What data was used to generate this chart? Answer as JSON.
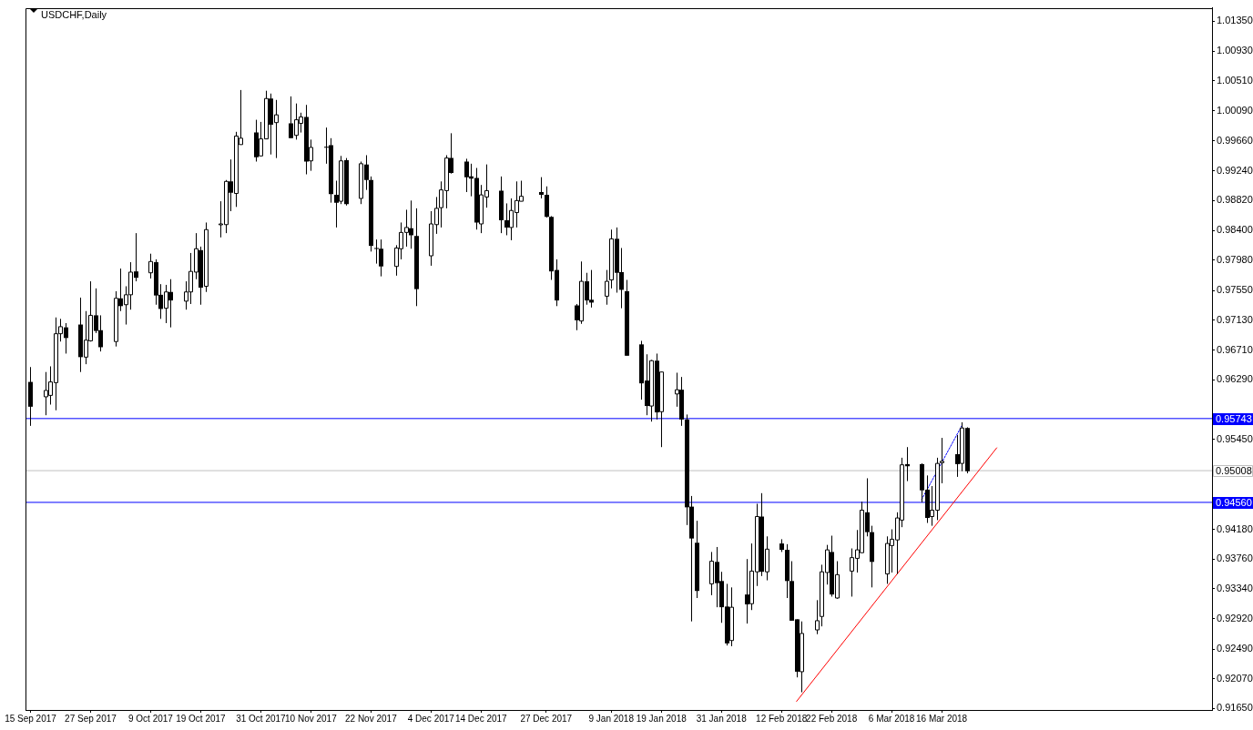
{
  "chart_data": {
    "type": "candlestick",
    "title": "USDCHF,Daily",
    "x": [
      "2017-09-15",
      "2017-09-18",
      "2017-09-19",
      "2017-09-20",
      "2017-09-21",
      "2017-09-22",
      "2017-09-25",
      "2017-09-26",
      "2017-09-27",
      "2017-09-28",
      "2017-09-29",
      "2017-10-02",
      "2017-10-03",
      "2017-10-04",
      "2017-10-05",
      "2017-10-06",
      "2017-10-09",
      "2017-10-10",
      "2017-10-11",
      "2017-10-12",
      "2017-10-13",
      "2017-10-16",
      "2017-10-17",
      "2017-10-18",
      "2017-10-19",
      "2017-10-20",
      "2017-10-23",
      "2017-10-24",
      "2017-10-25",
      "2017-10-26",
      "2017-10-27",
      "2017-10-30",
      "2017-10-31",
      "2017-11-01",
      "2017-11-02",
      "2017-11-03",
      "2017-11-06",
      "2017-11-07",
      "2017-11-08",
      "2017-11-09",
      "2017-11-10",
      "2017-11-13",
      "2017-11-14",
      "2017-11-15",
      "2017-11-16",
      "2017-11-17",
      "2017-11-20",
      "2017-11-21",
      "2017-11-22",
      "2017-11-23",
      "2017-11-24",
      "2017-11-27",
      "2017-11-28",
      "2017-11-29",
      "2017-11-30",
      "2017-12-01",
      "2017-12-04",
      "2017-12-05",
      "2017-12-06",
      "2017-12-07",
      "2017-12-08",
      "2017-12-11",
      "2017-12-12",
      "2017-12-13",
      "2017-12-14",
      "2017-12-15",
      "2017-12-18",
      "2017-12-19",
      "2017-12-20",
      "2017-12-21",
      "2017-12-22",
      "2017-12-26",
      "2017-12-27",
      "2017-12-28",
      "2017-12-29",
      "2018-01-02",
      "2018-01-03",
      "2018-01-04",
      "2018-01-05",
      "2018-01-08",
      "2018-01-09",
      "2018-01-10",
      "2018-01-11",
      "2018-01-12",
      "2018-01-15",
      "2018-01-16",
      "2018-01-17",
      "2018-01-18",
      "2018-01-19",
      "2018-01-22",
      "2018-01-23",
      "2018-01-24",
      "2018-01-25",
      "2018-01-26",
      "2018-01-29",
      "2018-01-30",
      "2018-01-31",
      "2018-02-01",
      "2018-02-02",
      "2018-02-05",
      "2018-02-06",
      "2018-02-07",
      "2018-02-08",
      "2018-02-09",
      "2018-02-12",
      "2018-02-13",
      "2018-02-14",
      "2018-02-15",
      "2018-02-16",
      "2018-02-19",
      "2018-02-20",
      "2018-02-21",
      "2018-02-22",
      "2018-02-23",
      "2018-02-26",
      "2018-02-27",
      "2018-02-28",
      "2018-03-01",
      "2018-03-02",
      "2018-03-05",
      "2018-03-06",
      "2018-03-07",
      "2018-03-08",
      "2018-03-09",
      "2018-03-12",
      "2018-03-13",
      "2018-03-14",
      "2018-03-15",
      "2018-03-16",
      "2018-03-19",
      "2018-03-20",
      "2018-03-21"
    ],
    "ohlc": [
      [
        0.9626,
        0.9647,
        0.9564,
        0.9591
      ],
      [
        0.9605,
        0.964,
        0.9579,
        0.9614
      ],
      [
        0.9607,
        0.9648,
        0.9594,
        0.9626
      ],
      [
        0.9625,
        0.9717,
        0.9586,
        0.9694
      ],
      [
        0.9694,
        0.9715,
        0.9683,
        0.9704
      ],
      [
        0.9703,
        0.9709,
        0.9666,
        0.9688
      ],
      [
        0.9707,
        0.9745,
        0.964,
        0.9661
      ],
      [
        0.9661,
        0.9726,
        0.9651,
        0.9685
      ],
      [
        0.9684,
        0.9768,
        0.9683,
        0.972
      ],
      [
        0.972,
        0.9758,
        0.9695,
        0.9698
      ],
      [
        0.9699,
        0.972,
        0.9669,
        0.9675
      ],
      [
        0.9683,
        0.9754,
        0.9676,
        0.9744
      ],
      [
        0.9744,
        0.9786,
        0.9726,
        0.9733
      ],
      [
        0.9735,
        0.9761,
        0.9707,
        0.9749
      ],
      [
        0.9749,
        0.9795,
        0.9728,
        0.9781
      ],
      [
        0.9782,
        0.9836,
        0.9768,
        0.9773
      ],
      [
        0.978,
        0.9807,
        0.9772,
        0.9796
      ],
      [
        0.9795,
        0.9799,
        0.9735,
        0.9748
      ],
      [
        0.9749,
        0.9764,
        0.9715,
        0.9729
      ],
      [
        0.973,
        0.9763,
        0.9709,
        0.9753
      ],
      [
        0.9753,
        0.9771,
        0.9703,
        0.9741
      ],
      [
        0.974,
        0.9768,
        0.9728,
        0.9753
      ],
      [
        0.9753,
        0.9808,
        0.9736,
        0.9782
      ],
      [
        0.9781,
        0.9836,
        0.9771,
        0.9814
      ],
      [
        0.9812,
        0.9817,
        0.9735,
        0.9759
      ],
      [
        0.9761,
        0.9851,
        0.9753,
        0.9841
      ],
      [
        0.9848,
        0.9881,
        0.983,
        0.9849
      ],
      [
        0.9848,
        0.9911,
        0.9836,
        0.9909
      ],
      [
        0.9909,
        0.994,
        0.9867,
        0.9893
      ],
      [
        0.9892,
        0.9979,
        0.9873,
        0.9973
      ],
      [
        0.9961,
        1.0038,
        0.9961,
        0.997
      ],
      [
        0.9978,
        0.9996,
        0.9937,
        0.9943
      ],
      [
        0.9945,
        0.9993,
        0.9945,
        0.9969
      ],
      [
        0.9969,
        1.0037,
        0.9969,
        1.0026
      ],
      [
        1.0026,
        1.0033,
        0.9947,
        0.9989
      ],
      [
        0.9992,
        1.0024,
        0.9942,
        1.0003
      ],
      [
        0.9991,
        1.0029,
        0.997,
        0.997
      ],
      [
        0.9974,
        1.0019,
        0.9968,
        0.9996
      ],
      [
        0.9991,
        1.0006,
        0.9978,
        1.0
      ],
      [
        1.0,
        1.0017,
        0.9919,
        0.9937
      ],
      [
        0.9938,
        0.9968,
        0.9924,
        0.9957
      ],
      [
        0.9958,
        0.9985,
        0.9934,
        0.9957
      ],
      [
        0.996,
        0.997,
        0.9879,
        0.9891
      ],
      [
        0.989,
        0.991,
        0.9844,
        0.9879
      ],
      [
        0.9881,
        0.9945,
        0.9877,
        0.9938
      ],
      [
        0.9939,
        0.9942,
        0.9875,
        0.9877
      ],
      [
        0.9885,
        0.9937,
        0.9877,
        0.9934
      ],
      [
        0.9933,
        0.9946,
        0.9897,
        0.9911
      ],
      [
        0.9911,
        0.9916,
        0.981,
        0.9818
      ],
      [
        0.9815,
        0.9827,
        0.9793,
        0.9814
      ],
      [
        0.9814,
        0.9827,
        0.9775,
        0.9789
      ],
      [
        0.9789,
        0.9819,
        0.9776,
        0.9815
      ],
      [
        0.9814,
        0.9851,
        0.9799,
        0.9837
      ],
      [
        0.9837,
        0.9869,
        0.9817,
        0.9844
      ],
      [
        0.9843,
        0.9882,
        0.9814,
        0.9833
      ],
      [
        0.9832,
        0.9871,
        0.9733,
        0.9757
      ],
      [
        0.9804,
        0.9867,
        0.979,
        0.9849
      ],
      [
        0.9848,
        0.9887,
        0.9835,
        0.9871
      ],
      [
        0.9872,
        0.9909,
        0.9844,
        0.9897
      ],
      [
        0.9896,
        0.9946,
        0.9871,
        0.9942
      ],
      [
        0.9942,
        0.9977,
        0.992,
        0.9921
      ],
      [
        0.9937,
        0.9941,
        0.9894,
        0.9915
      ],
      [
        0.9916,
        0.9934,
        0.9888,
        0.9913
      ],
      [
        0.9914,
        0.9928,
        0.9841,
        0.9851
      ],
      [
        0.9849,
        0.9904,
        0.9836,
        0.989
      ],
      [
        0.9887,
        0.9933,
        0.9872,
        0.9896
      ],
      [
        0.9896,
        0.9916,
        0.9836,
        0.9854
      ],
      [
        0.9854,
        0.9878,
        0.9833,
        0.9844
      ],
      [
        0.9844,
        0.9885,
        0.9826,
        0.9868
      ],
      [
        0.9865,
        0.9909,
        0.9844,
        0.9882
      ],
      [
        0.9881,
        0.991,
        0.9881,
        0.9888
      ],
      [
        0.9894,
        0.9915,
        0.9885,
        0.989
      ],
      [
        0.989,
        0.9902,
        0.9858,
        0.9859
      ],
      [
        0.9859,
        0.986,
        0.977,
        0.9782
      ],
      [
        0.9784,
        0.9799,
        0.9733,
        0.9741
      ],
      [
        0.9734,
        0.9736,
        0.9699,
        0.9713
      ],
      [
        0.9712,
        0.9796,
        0.9708,
        0.9768
      ],
      [
        0.9768,
        0.978,
        0.9735,
        0.9741
      ],
      [
        0.9742,
        0.9784,
        0.9731,
        0.9738
      ],
      [
        0.9747,
        0.9784,
        0.9735,
        0.9768
      ],
      [
        0.977,
        0.9841,
        0.9758,
        0.9828
      ],
      [
        0.9828,
        0.9844,
        0.9752,
        0.978
      ],
      [
        0.9781,
        0.9815,
        0.973,
        0.9756
      ],
      [
        0.9754,
        0.977,
        0.9663,
        0.9663
      ],
      [
        0.9679,
        0.9684,
        0.9601,
        0.9624
      ],
      [
        0.9628,
        0.9665,
        0.9579,
        0.9592
      ],
      [
        0.9592,
        0.9657,
        0.957,
        0.9656
      ],
      [
        0.9656,
        0.9666,
        0.9573,
        0.9583
      ],
      [
        0.9584,
        0.964,
        0.9534,
        0.964
      ],
      [
        0.9609,
        0.9639,
        0.9591,
        0.9615
      ],
      [
        0.9615,
        0.9633,
        0.9564,
        0.9573
      ],
      [
        0.9573,
        0.958,
        0.9424,
        0.9449
      ],
      [
        0.945,
        0.9465,
        0.9288,
        0.9405
      ],
      [
        0.9399,
        0.943,
        0.9321,
        0.9331
      ],
      [
        0.9341,
        0.9386,
        0.9325,
        0.9373
      ],
      [
        0.9372,
        0.9393,
        0.9308,
        0.9342
      ],
      [
        0.9345,
        0.9358,
        0.9286,
        0.9308
      ],
      [
        0.9309,
        0.9341,
        0.9254,
        0.9257
      ],
      [
        0.9261,
        0.9336,
        0.9253,
        0.9308
      ],
      [
        0.9326,
        0.9376,
        0.9285,
        0.9312
      ],
      [
        0.9313,
        0.9398,
        0.9304,
        0.9359
      ],
      [
        0.9358,
        0.9454,
        0.9338,
        0.9436
      ],
      [
        0.9436,
        0.9469,
        0.9352,
        0.9358
      ],
      [
        0.9358,
        0.9408,
        0.9346,
        0.939
      ],
      [
        0.9398,
        0.9404,
        0.9386,
        0.9389
      ],
      [
        0.9389,
        0.9397,
        0.9321,
        0.9345
      ],
      [
        0.9345,
        0.9373,
        0.9289,
        0.9289
      ],
      [
        0.9291,
        0.9291,
        0.9209,
        0.9217
      ],
      [
        0.9217,
        0.9288,
        0.9188,
        0.9271
      ],
      [
        0.9276,
        0.9318,
        0.927,
        0.9289
      ],
      [
        0.9295,
        0.9368,
        0.9281,
        0.9358
      ],
      [
        0.9357,
        0.9396,
        0.934,
        0.9389
      ],
      [
        0.9386,
        0.9409,
        0.9323,
        0.9326
      ],
      [
        0.9321,
        0.9373,
        0.932,
        0.9354
      ],
      [
        0.9359,
        0.9391,
        0.9323,
        0.9378
      ],
      [
        0.9377,
        0.9417,
        0.9357,
        0.9389
      ],
      [
        0.9385,
        0.9457,
        0.9385,
        0.9445
      ],
      [
        0.9442,
        0.949,
        0.9408,
        0.9414
      ],
      [
        0.9414,
        0.9423,
        0.9336,
        0.9372
      ],
      [
        0.9355,
        0.9408,
        0.9341,
        0.9398
      ],
      [
        0.9395,
        0.9418,
        0.9357,
        0.9404
      ],
      [
        0.9403,
        0.9442,
        0.9355,
        0.9434
      ],
      [
        0.9431,
        0.9519,
        0.9421,
        0.9509
      ],
      [
        0.951,
        0.9534,
        0.9486,
        0.9507
      ],
      [
        0.951,
        0.9511,
        0.9456,
        0.9473
      ],
      [
        0.9474,
        0.9494,
        0.9427,
        0.9434
      ],
      [
        0.9436,
        0.9479,
        0.9423,
        0.9445
      ],
      [
        0.9445,
        0.9519,
        0.9431,
        0.9511
      ],
      [
        0.9512,
        0.9547,
        0.9483,
        0.9514
      ],
      [
        0.9524,
        0.9551,
        0.9492,
        0.951
      ],
      [
        0.9511,
        0.9569,
        0.95,
        0.9561
      ],
      [
        0.9561,
        0.9562,
        0.9497,
        0.95
      ]
    ],
    "series": [
      {
        "type": "line",
        "color": "#ff0000",
        "x": [
          "2018-02-15",
          "2018-03-27"
        ],
        "values": [
          0.9175,
          0.9533
        ]
      },
      {
        "type": "line",
        "color": "#0000ff",
        "line_style": "dotted",
        "x": [
          "2018-03-12",
          "2018-03-20"
        ],
        "values": [
          0.946,
          0.9564
        ]
      }
    ],
    "ref_lines": [
      {
        "axis": "y",
        "value": 0.95743,
        "label": "0.95743",
        "color": "#0000ff"
      },
      {
        "axis": "y",
        "value": 0.9456,
        "label": "0.94560",
        "color": "#0000ff"
      },
      {
        "axis": "y",
        "value": 0.95008,
        "label": "0.95008",
        "color": "#c0c0c0"
      }
    ],
    "xlim": [
      "2017-09-14",
      "2018-05-09"
    ],
    "xticks": [
      {
        "value": "2017-09-15",
        "label": "15 Sep 2017"
      },
      {
        "value": "2017-09-27",
        "label": "27 Sep 2017"
      },
      {
        "value": "2017-10-09",
        "label": "9 Oct 2017"
      },
      {
        "value": "2017-10-19",
        "label": "19 Oct 2017"
      },
      {
        "value": "2017-10-31",
        "label": "31 Oct 2017"
      },
      {
        "value": "2017-11-10",
        "label": "10 Nov 2017"
      },
      {
        "value": "2017-11-22",
        "label": "22 Nov 2017"
      },
      {
        "value": "2017-12-04",
        "label": "4 Dec 2017"
      },
      {
        "value": "2017-12-14",
        "label": "14 Dec 2017"
      },
      {
        "value": "2017-12-27",
        "label": "27 Dec 2017"
      },
      {
        "value": "2018-01-09",
        "label": "9 Jan 2018"
      },
      {
        "value": "2018-01-19",
        "label": "19 Jan 2018"
      },
      {
        "value": "2018-01-31",
        "label": "31 Jan 2018"
      },
      {
        "value": "2018-02-12",
        "label": "12 Feb 2018"
      },
      {
        "value": "2018-02-22",
        "label": "22 Feb 2018"
      },
      {
        "value": "2018-03-06",
        "label": "6 Mar 2018"
      },
      {
        "value": "2018-03-16",
        "label": "16 Mar 2018"
      }
    ],
    "ylim": [
      0.9163,
      1.0154
    ],
    "yticks": [
      {
        "value": 1.0135,
        "label": "1.01350"
      },
      {
        "value": 1.0093,
        "label": "1.00930"
      },
      {
        "value": 1.0051,
        "label": "1.00510"
      },
      {
        "value": 1.0009,
        "label": "1.00090"
      },
      {
        "value": 0.9966,
        "label": "0.99660"
      },
      {
        "value": 0.9924,
        "label": "0.99240"
      },
      {
        "value": 0.9882,
        "label": "0.98820"
      },
      {
        "value": 0.984,
        "label": "0.98400"
      },
      {
        "value": 0.9798,
        "label": "0.97980"
      },
      {
        "value": 0.9755,
        "label": "0.97550"
      },
      {
        "value": 0.9713,
        "label": "0.97130"
      },
      {
        "value": 0.9671,
        "label": "0.96710"
      },
      {
        "value": 0.9629,
        "label": "0.96290"
      },
      {
        "value": 0.9545,
        "label": "0.95450"
      },
      {
        "value": 0.9418,
        "label": "0.94180"
      },
      {
        "value": 0.9376,
        "label": "0.93760"
      },
      {
        "value": 0.9334,
        "label": "0.93340"
      },
      {
        "value": 0.9292,
        "label": "0.92920"
      },
      {
        "value": 0.9249,
        "label": "0.92490"
      },
      {
        "value": 0.9207,
        "label": "0.92070"
      },
      {
        "value": 0.9165,
        "label": "0.91650"
      }
    ]
  }
}
